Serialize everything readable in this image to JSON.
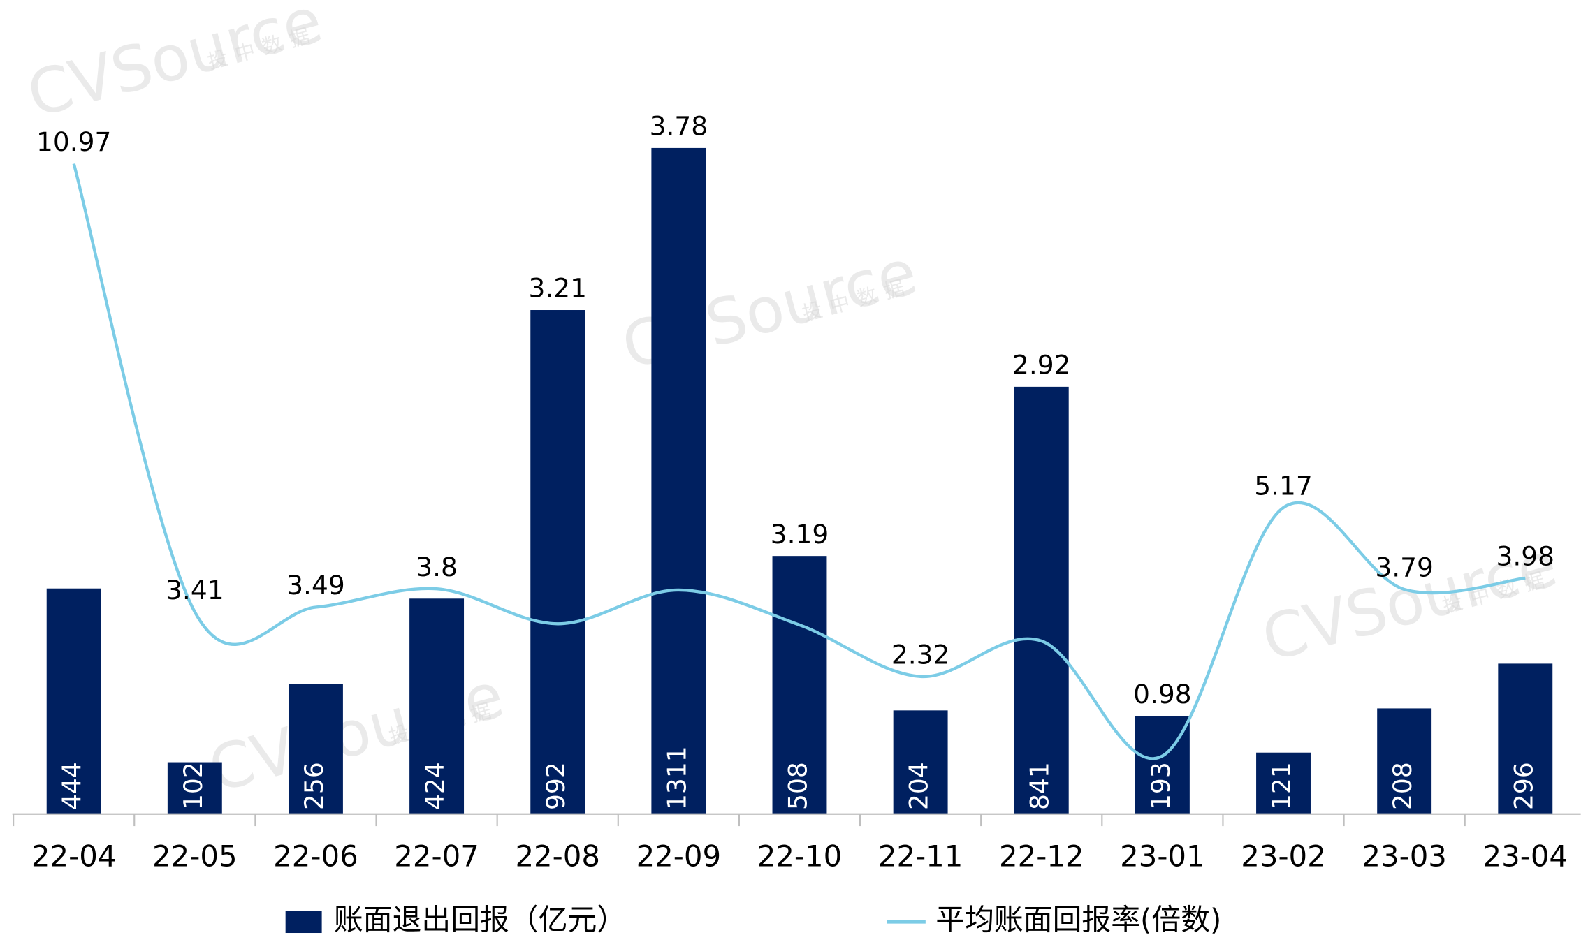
{
  "chart_data": {
    "type": "bar-line",
    "watermark": [
      "CVSource",
      "投中数据"
    ],
    "categories": [
      "22-04",
      "22-05",
      "22-06",
      "22-07",
      "22-08",
      "22-09",
      "22-10",
      "22-11",
      "22-12",
      "23-01",
      "23-02",
      "23-03",
      "23-04"
    ],
    "series": [
      {
        "name": "账面退出回报（亿元）",
        "color": "#002060",
        "type": "bar",
        "values": [
          444,
          102,
          256,
          424,
          992,
          1311,
          508,
          204,
          841,
          193,
          121,
          208,
          296
        ]
      },
      {
        "name": "平均账面回报率(倍数)",
        "color": "#7ccce6",
        "type": "line",
        "axis": "y2",
        "values": [
          10.97,
          3.41,
          3.49,
          3.8,
          3.21,
          3.78,
          3.19,
          2.32,
          2.92,
          0.98,
          5.17,
          3.79,
          3.98
        ]
      }
    ],
    "ylim": [
      0,
      1400
    ],
    "y2lim": [
      0,
      12
    ],
    "legend": "bottom"
  }
}
